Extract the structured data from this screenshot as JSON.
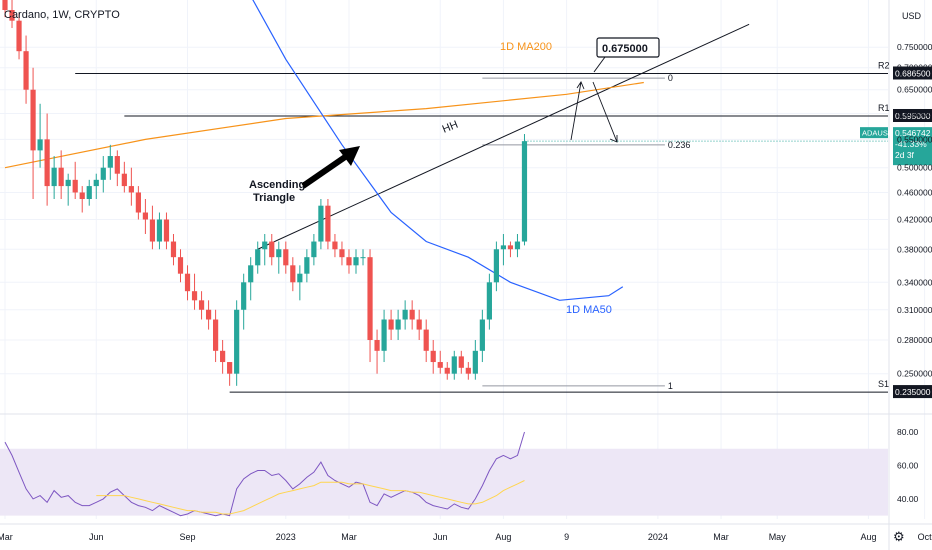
{
  "header": {
    "symbol_line": "Cardano, 1W, CRYPTO"
  },
  "currency_label": "USD",
  "colors": {
    "up": "#26a69a",
    "down": "#ef5350",
    "ma200": "#f7931a",
    "ma50": "#2962ff",
    "rsi": "#7e57c2",
    "rsi_ma": "#ffd54f",
    "rsi_band": "#ede7f6"
  },
  "chart_data": [
    {
      "type": "candlestick",
      "title": "Cardano, 1W, CRYPTO",
      "y_axis_ticks": [
        0.75,
        0.7,
        0.65,
        0.6,
        0.55,
        0.5,
        0.46,
        0.42,
        0.38,
        0.34,
        0.31,
        0.28,
        0.25
      ],
      "y_tick_labels": [
        "0.750000",
        "0.700000",
        "0.650000",
        "0.600000",
        "0.550000",
        "0.500000",
        "0.460000",
        "0.420000",
        "0.380000",
        "0.340000",
        "0.310000",
        "0.280000",
        "0.250000"
      ],
      "x_tick_labels": [
        "Mar",
        "Jun",
        "Sep",
        "2023",
        "Mar",
        "Jun",
        "Aug",
        "9",
        "2024",
        "Mar",
        "May",
        "Aug",
        "Oct"
      ],
      "x_tick_weeks": [
        0,
        13,
        26,
        40,
        49,
        62,
        71,
        80,
        93,
        102,
        110,
        123,
        131
      ],
      "ylim": [
        0.225,
        0.85
      ],
      "log_scale": true,
      "series": [
        {
          "name": "ADAUSD",
          "candles": [
            [
              0.92,
              0.93,
              0.83,
              0.85
            ],
            [
              0.85,
              0.88,
              0.8,
              0.82
            ],
            [
              0.82,
              0.84,
              0.72,
              0.74
            ],
            [
              0.74,
              0.78,
              0.62,
              0.65
            ],
            [
              0.65,
              0.7,
              0.45,
              0.53
            ],
            [
              0.53,
              0.62,
              0.5,
              0.55
            ],
            [
              0.55,
              0.6,
              0.44,
              0.47
            ],
            [
              0.47,
              0.52,
              0.45,
              0.5
            ],
            [
              0.5,
              0.53,
              0.45,
              0.47
            ],
            [
              0.47,
              0.49,
              0.44,
              0.48
            ],
            [
              0.48,
              0.51,
              0.45,
              0.46
            ],
            [
              0.46,
              0.47,
              0.43,
              0.45
            ],
            [
              0.45,
              0.48,
              0.44,
              0.47
            ],
            [
              0.47,
              0.49,
              0.45,
              0.48
            ],
            [
              0.48,
              0.52,
              0.46,
              0.5
            ],
            [
              0.5,
              0.54,
              0.48,
              0.52
            ],
            [
              0.52,
              0.53,
              0.47,
              0.49
            ],
            [
              0.49,
              0.51,
              0.46,
              0.47
            ],
            [
              0.47,
              0.5,
              0.44,
              0.46
            ],
            [
              0.46,
              0.47,
              0.42,
              0.43
            ],
            [
              0.43,
              0.45,
              0.4,
              0.42
            ],
            [
              0.42,
              0.44,
              0.38,
              0.39
            ],
            [
              0.39,
              0.43,
              0.38,
              0.42
            ],
            [
              0.42,
              0.43,
              0.38,
              0.39
            ],
            [
              0.39,
              0.4,
              0.36,
              0.37
            ],
            [
              0.37,
              0.38,
              0.34,
              0.35
            ],
            [
              0.35,
              0.36,
              0.32,
              0.33
            ],
            [
              0.33,
              0.35,
              0.31,
              0.32
            ],
            [
              0.32,
              0.33,
              0.3,
              0.31
            ],
            [
              0.31,
              0.32,
              0.29,
              0.3
            ],
            [
              0.3,
              0.31,
              0.26,
              0.27
            ],
            [
              0.27,
              0.28,
              0.25,
              0.26
            ],
            [
              0.26,
              0.26,
              0.24,
              0.25
            ],
            [
              0.25,
              0.32,
              0.24,
              0.31
            ],
            [
              0.31,
              0.35,
              0.29,
              0.34
            ],
            [
              0.34,
              0.37,
              0.32,
              0.36
            ],
            [
              0.36,
              0.39,
              0.35,
              0.38
            ],
            [
              0.38,
              0.4,
              0.36,
              0.39
            ],
            [
              0.39,
              0.4,
              0.36,
              0.37
            ],
            [
              0.37,
              0.39,
              0.35,
              0.38
            ],
            [
              0.38,
              0.39,
              0.35,
              0.36
            ],
            [
              0.36,
              0.37,
              0.33,
              0.34
            ],
            [
              0.34,
              0.36,
              0.32,
              0.35
            ],
            [
              0.35,
              0.38,
              0.34,
              0.37
            ],
            [
              0.37,
              0.4,
              0.36,
              0.39
            ],
            [
              0.39,
              0.45,
              0.38,
              0.44
            ],
            [
              0.44,
              0.45,
              0.38,
              0.39
            ],
            [
              0.39,
              0.4,
              0.37,
              0.38
            ],
            [
              0.38,
              0.39,
              0.36,
              0.37
            ],
            [
              0.37,
              0.38,
              0.35,
              0.36
            ],
            [
              0.36,
              0.38,
              0.35,
              0.37
            ],
            [
              0.37,
              0.38,
              0.36,
              0.37
            ],
            [
              0.37,
              0.38,
              0.26,
              0.28
            ],
            [
              0.28,
              0.29,
              0.25,
              0.27
            ],
            [
              0.27,
              0.31,
              0.26,
              0.3
            ],
            [
              0.3,
              0.31,
              0.28,
              0.29
            ],
            [
              0.29,
              0.31,
              0.28,
              0.3
            ],
            [
              0.3,
              0.32,
              0.29,
              0.31
            ],
            [
              0.31,
              0.32,
              0.29,
              0.3
            ],
            [
              0.3,
              0.31,
              0.28,
              0.29
            ],
            [
              0.29,
              0.3,
              0.26,
              0.27
            ],
            [
              0.27,
              0.28,
              0.25,
              0.26
            ],
            [
              0.26,
              0.27,
              0.25,
              0.255
            ],
            [
              0.255,
              0.26,
              0.245,
              0.25
            ],
            [
              0.25,
              0.27,
              0.245,
              0.265
            ],
            [
              0.265,
              0.27,
              0.25,
              0.255
            ],
            [
              0.255,
              0.26,
              0.245,
              0.25
            ],
            [
              0.25,
              0.28,
              0.245,
              0.27
            ],
            [
              0.27,
              0.31,
              0.26,
              0.3
            ],
            [
              0.3,
              0.35,
              0.29,
              0.34
            ],
            [
              0.34,
              0.39,
              0.33,
              0.38
            ],
            [
              0.38,
              0.4,
              0.36,
              0.385
            ],
            [
              0.385,
              0.39,
              0.37,
              0.38
            ],
            [
              0.38,
              0.4,
              0.37,
              0.39
            ],
            [
              0.39,
              0.56,
              0.385,
              0.5467
            ]
          ]
        }
      ],
      "ma200": {
        "name": "1D MA200",
        "label": "1D MA200",
        "points": [
          [
            0,
            0.5
          ],
          [
            20,
            0.55
          ],
          [
            40,
            0.59
          ],
          [
            60,
            0.61
          ],
          [
            80,
            0.64
          ],
          [
            91,
            0.666
          ]
        ]
      },
      "ma50": {
        "name": "1D MA50",
        "label": "1D MA50",
        "points": [
          [
            34,
            0.93
          ],
          [
            40,
            0.72
          ],
          [
            48,
            0.54
          ],
          [
            55,
            0.43
          ],
          [
            60,
            0.39
          ],
          [
            66,
            0.37
          ],
          [
            72,
            0.34
          ],
          [
            79,
            0.32
          ],
          [
            86,
            0.325
          ],
          [
            88,
            0.335
          ]
        ]
      },
      "levels": [
        {
          "name": "R2",
          "value": 0.6865,
          "label": "R2",
          "price_label": "0.686500"
        },
        {
          "name": "R1",
          "value": 0.595,
          "label": "R1",
          "price_label": "0.595000"
        },
        {
          "name": "S1",
          "value": 0.235,
          "label": "S1",
          "price_label": "0.235000"
        }
      ],
      "fib": [
        {
          "level": "0",
          "value": 0.676
        },
        {
          "level": "0.236",
          "value": 0.54
        },
        {
          "level": "1",
          "value": 0.24
        }
      ],
      "trendline": {
        "label": "HH",
        "from": [
          36,
          0.38
        ],
        "to": [
          106,
          0.81
        ]
      },
      "annotations": {
        "ascending_triangle_line1": "Ascending",
        "ascending_triangle_line2": "Triangle",
        "target_box": "0.675000",
        "hh": "HH"
      },
      "last_price": {
        "symbol": "ADAUSD",
        "price": "0.546742",
        "change": "-41.33%",
        "countdown": "2d 3f"
      }
    },
    {
      "type": "line",
      "title": "",
      "y_axis_ticks": [
        80,
        60,
        40
      ],
      "y_tick_labels": [
        "80.00",
        "60.00",
        "40.00"
      ],
      "ylim": [
        28,
        86
      ],
      "band": [
        30,
        70
      ],
      "series": [
        {
          "name": "RSI",
          "values": [
            74,
            66,
            56,
            46,
            40,
            42,
            38,
            45,
            41,
            42,
            38,
            36,
            36,
            38,
            40,
            44,
            46,
            42,
            38,
            36,
            35,
            33,
            36,
            34,
            32,
            30,
            31,
            33,
            32,
            31,
            30,
            31,
            30,
            46,
            52,
            55,
            57,
            57,
            54,
            55,
            51,
            46,
            49,
            53,
            56,
            62,
            54,
            51,
            49,
            47,
            50,
            49,
            38,
            36,
            43,
            41,
            43,
            45,
            44,
            42,
            38,
            36,
            35,
            34,
            37,
            35,
            34,
            40,
            48,
            57,
            64,
            66,
            64,
            66,
            80
          ]
        },
        {
          "name": "RSI MA",
          "values": [
            null,
            null,
            null,
            null,
            null,
            null,
            null,
            null,
            null,
            null,
            null,
            null,
            null,
            42,
            42,
            42,
            42,
            42,
            41,
            40,
            39,
            38,
            37,
            36,
            35,
            34,
            33,
            33,
            32,
            32,
            32,
            31,
            31,
            32,
            33,
            35,
            37,
            39,
            41,
            43,
            44,
            45,
            46,
            47,
            48,
            50,
            50,
            50,
            50,
            49,
            49,
            49,
            48,
            47,
            46,
            45,
            45,
            45,
            44,
            44,
            43,
            42,
            41,
            40,
            39,
            38,
            37,
            37,
            38,
            40,
            42,
            45,
            47,
            49,
            51
          ]
        }
      ]
    }
  ],
  "shape_meta": {
    "ascending_arrow": "arrow-icon"
  }
}
